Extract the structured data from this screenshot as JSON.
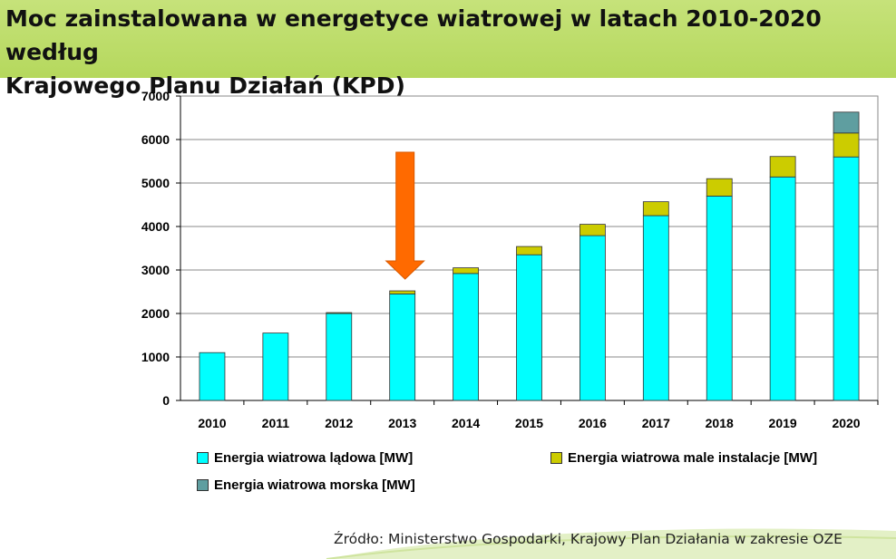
{
  "title_line1": "Moc zainstalowana w energetyce wiatrowej w latach 2010-2020 według",
  "title_line2": "Krajowego Planu Działań (KPD)",
  "source": "Źródło: Ministerstwo Gospodarki, Krajowy Plan Działania w zakresie OZE",
  "colors": {
    "banner": "#b9da62",
    "arrow": "#ff6a00"
  },
  "chart_data": {
    "type": "bar",
    "stacked": true,
    "categories": [
      "2010",
      "2011",
      "2012",
      "2013",
      "2014",
      "2015",
      "2016",
      "2017",
      "2018",
      "2019",
      "2020"
    ],
    "ylim": [
      0,
      7000
    ],
    "yticks": [
      0,
      1000,
      2000,
      3000,
      4000,
      5000,
      6000,
      7000
    ],
    "grid": true,
    "legend_position": "bottom",
    "highlight_category": "2013",
    "series": [
      {
        "name": "Energia wiatrowa lądowa [MW]",
        "color": "#00ffff",
        "values": [
          1100,
          1550,
          2000,
          2450,
          2920,
          3350,
          3790,
          4250,
          4700,
          5140,
          5600
        ]
      },
      {
        "name": "Energia wiatrowa male instalacje [MW]",
        "color": "#cccc00",
        "values": [
          0,
          0,
          20,
          70,
          130,
          190,
          260,
          320,
          400,
          470,
          550
        ]
      },
      {
        "name": "Energia wiatrowa morska [MW]",
        "color": "#5f9ea0",
        "values": [
          0,
          0,
          0,
          0,
          0,
          0,
          0,
          0,
          0,
          0,
          480
        ]
      }
    ]
  }
}
